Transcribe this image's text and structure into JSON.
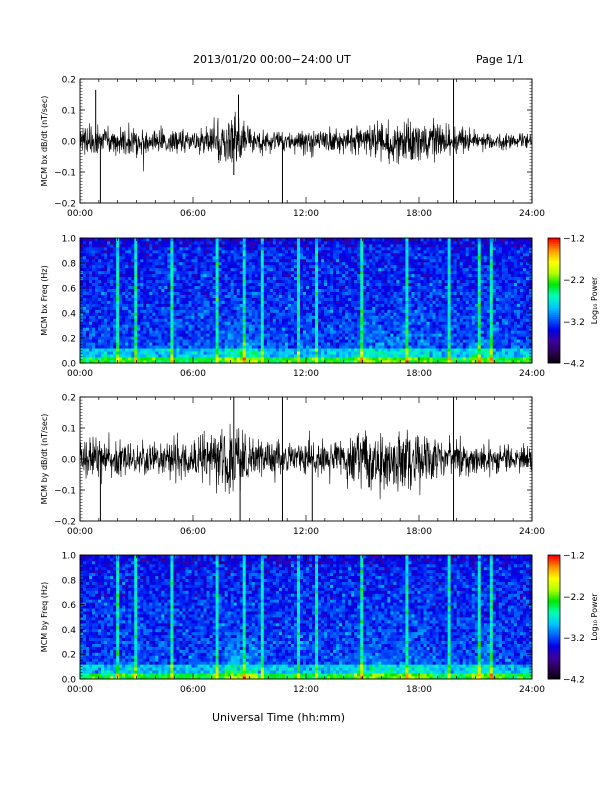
{
  "header": {
    "title": "2013/01/20  00:00−24:00 UT",
    "page": "Page 1/1"
  },
  "x_axis_label": "Universal Time (hh:mm)",
  "colors": {
    "waveform": "#000000",
    "spectrogram_scale": [
      "#000000",
      "#2a0050",
      "#3c00a0",
      "#0000e8",
      "#0064ff",
      "#00c8ff",
      "#00ffb4",
      "#00e600",
      "#b4ff00",
      "#ffff00",
      "#ff9600",
      "#ff0000"
    ]
  },
  "chart_data": [
    {
      "type": "line",
      "ylabel": "MCM bx dB/dt (nT/sec)",
      "ylim": [
        -0.2,
        0.2
      ],
      "yticks": [
        "0.2",
        "0.1",
        "0.0",
        "−0.1",
        "−0.2"
      ],
      "xlim": [
        "00:00",
        "24:00"
      ],
      "xticks": [
        "00:00",
        "06:00",
        "12:00",
        "18:00",
        "24:00"
      ],
      "series": [
        {
          "hours": [
            0,
            1,
            2,
            3,
            4,
            5,
            6,
            7,
            8,
            9,
            10,
            11,
            12,
            13,
            14,
            15,
            16,
            17,
            18,
            19,
            20,
            21,
            22,
            23,
            24
          ],
          "envelope": [
            0.04,
            0.05,
            0.04,
            0.04,
            0.035,
            0.04,
            0.035,
            0.05,
            0.09,
            0.04,
            0.035,
            0.03,
            0.035,
            0.035,
            0.04,
            0.04,
            0.06,
            0.065,
            0.06,
            0.05,
            0.04,
            0.03,
            0.03,
            0.02,
            0.02
          ],
          "spikes": [
            {
              "time": "01:05",
              "value": -0.2
            },
            {
              "time": "00:50",
              "value": 0.165
            },
            {
              "time": "08:25",
              "value": 0.15
            },
            {
              "time": "08:10",
              "value": -0.11
            },
            {
              "time": "10:45",
              "value": -0.2
            },
            {
              "time": "19:50",
              "value": -0.2
            },
            {
              "time": "19:50",
              "value": 0.2
            }
          ]
        }
      ]
    },
    {
      "type": "heatmap",
      "ylabel": "MCM bx Freq (Hz)",
      "ylim": [
        0,
        1.0
      ],
      "yticks": [
        "1.0",
        "0.8",
        "0.6",
        "0.4",
        "0.2",
        "0.0"
      ],
      "xlim": [
        "00:00",
        "24:00"
      ],
      "xticks": [
        "00:00",
        "06:00",
        "12:00",
        "18:00",
        "24:00"
      ],
      "colorbar": {
        "label": "Log₁₀ Power",
        "range": [
          -4.2,
          -1.2
        ],
        "ticks": [
          "−1.2",
          "−2.2",
          "−3.2",
          "−4.2"
        ]
      }
    },
    {
      "type": "line",
      "ylabel": "MCM by dB/dt (nT/sec)",
      "ylim": [
        -0.2,
        0.2
      ],
      "yticks": [
        "0.2",
        "0.1",
        "0.0",
        "−0.1",
        "−0.2"
      ],
      "xlim": [
        "00:00",
        "24:00"
      ],
      "xticks": [
        "00:00",
        "06:00",
        "12:00",
        "18:00",
        "24:00"
      ],
      "series": [
        {
          "hours": [
            0,
            1,
            2,
            3,
            4,
            5,
            6,
            7,
            8,
            9,
            10,
            11,
            12,
            13,
            14,
            15,
            16,
            17,
            18,
            19,
            20,
            21,
            22,
            23,
            24
          ],
          "envelope": [
            0.05,
            0.07,
            0.05,
            0.05,
            0.045,
            0.06,
            0.05,
            0.08,
            0.11,
            0.06,
            0.06,
            0.05,
            0.05,
            0.05,
            0.05,
            0.09,
            0.1,
            0.1,
            0.08,
            0.06,
            0.05,
            0.04,
            0.04,
            0.035,
            0.035
          ],
          "spikes": [
            {
              "time": "01:05",
              "value": -0.2
            },
            {
              "time": "08:10",
              "value": 0.2
            },
            {
              "time": "08:30",
              "value": -0.2
            },
            {
              "time": "10:45",
              "value": 0.2
            },
            {
              "time": "10:45",
              "value": -0.2
            },
            {
              "time": "12:20",
              "value": -0.2
            },
            {
              "time": "19:50",
              "value": -0.2
            },
            {
              "time": "19:50",
              "value": 0.2
            }
          ]
        }
      ]
    },
    {
      "type": "heatmap",
      "ylabel": "MCM by Freq (Hz)",
      "ylim": [
        0,
        1.0
      ],
      "yticks": [
        "1.0",
        "0.8",
        "0.6",
        "0.4",
        "0.2",
        "0.0"
      ],
      "xlim": [
        "00:00",
        "24:00"
      ],
      "xticks": [
        "00:00",
        "06:00",
        "12:00",
        "18:00",
        "24:00"
      ],
      "colorbar": {
        "label": "Log₁₀ Power",
        "range": [
          -4.2,
          -1.2
        ],
        "ticks": [
          "−1.2",
          "−2.2",
          "−3.2",
          "−4.2"
        ]
      }
    }
  ]
}
